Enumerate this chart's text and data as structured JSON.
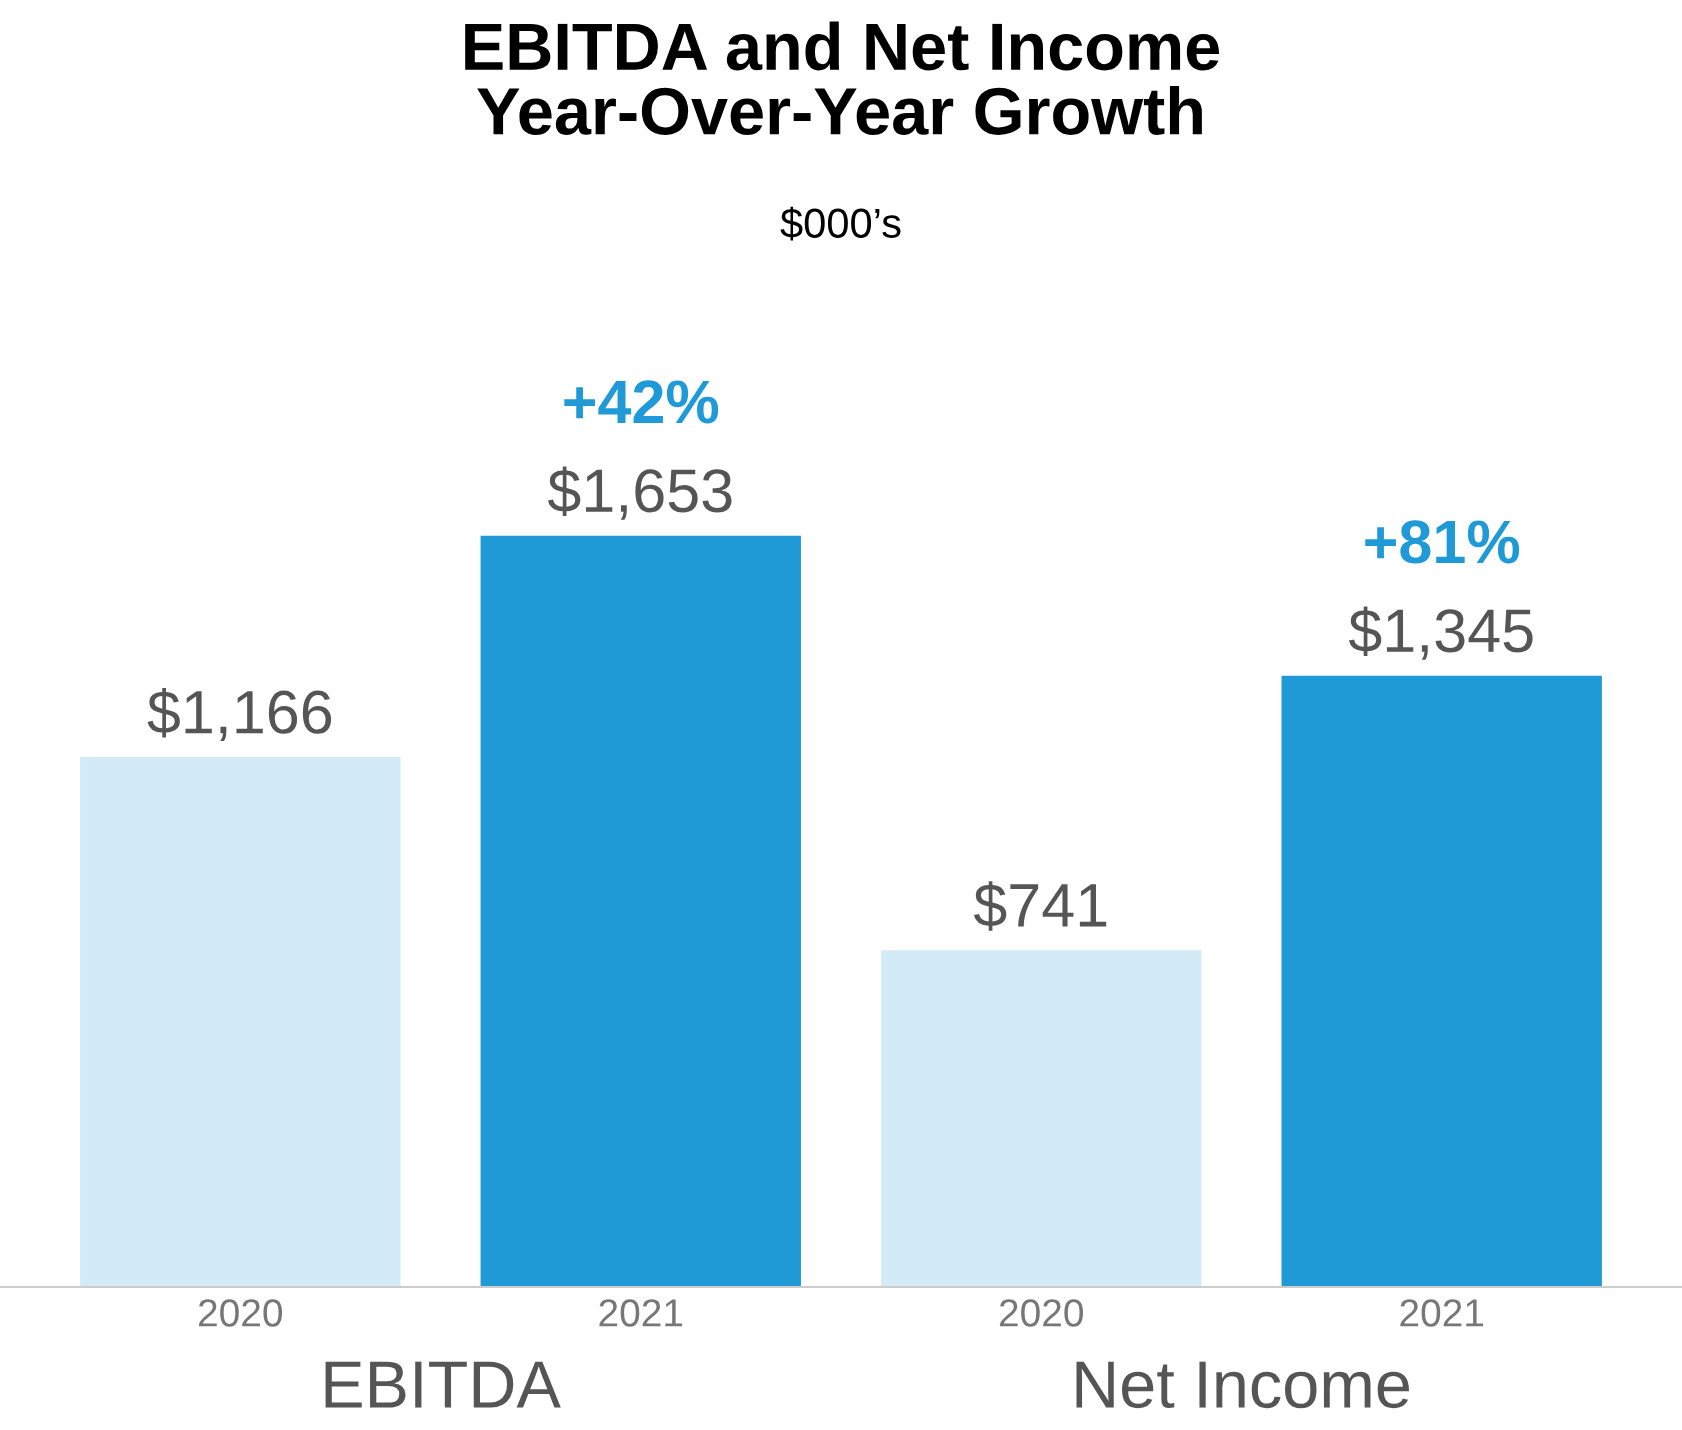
{
  "chart_data": {
    "type": "bar",
    "title": "EBITDA and Net Income\nYear-Over-Year Growth",
    "subtitle": "$000’s",
    "categories": [
      "2020",
      "2021",
      "2020",
      "2021"
    ],
    "values": [
      1166,
      1653,
      741,
      1345
    ],
    "colors": [
      "#d3eaf7",
      "#1f9ad6",
      "#d3eaf7",
      "#1f9ad6"
    ],
    "value_labels": [
      "$1,166",
      "$1,653",
      "$741",
      "$1,345"
    ],
    "annotations": [
      "+42%",
      "+81%",
      "EBITDA",
      "Net Income"
    ],
    "grid": false
  }
}
